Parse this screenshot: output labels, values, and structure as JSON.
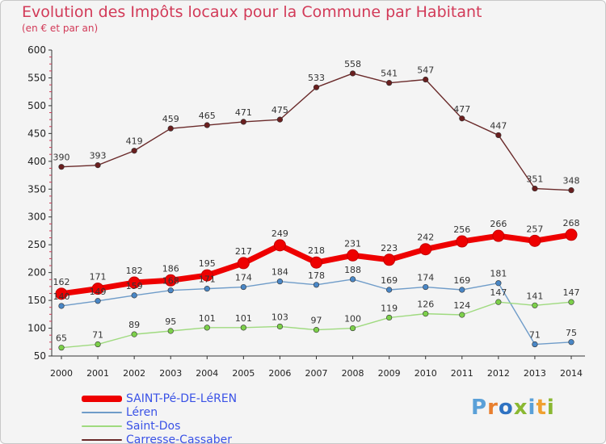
{
  "title": "Evolution des Impôts locaux pour la Commune par Habitant",
  "subtitle": "(en € et par an)",
  "logo": {
    "text": "Proxiti",
    "letter_colors": [
      "#5aa0d8",
      "#e87f2f",
      "#2e72c2",
      "#8ab832",
      "#5aa0d8",
      "#f0a030",
      "#8ab832"
    ]
  },
  "chart_data": {
    "type": "line",
    "x": [
      "2000",
      "2001",
      "2002",
      "2003",
      "2004",
      "2005",
      "2006",
      "2007",
      "2008",
      "2009",
      "2010",
      "2011",
      "2012",
      "2013",
      "2014"
    ],
    "ylim": [
      50,
      600
    ],
    "yticks": [
      50,
      100,
      150,
      200,
      250,
      300,
      350,
      400,
      450,
      500,
      550,
      600
    ],
    "grid": false,
    "legend_position": "bottom-left",
    "series": [
      {
        "name": "SAINT-Pé-DE-LéREN",
        "color": "#ee0000",
        "point_color": "#ee0000",
        "emphasis": true,
        "values": [
          162,
          171,
          182,
          186,
          195,
          217,
          249,
          218,
          231,
          223,
          242,
          256,
          266,
          257,
          268
        ],
        "labels": [
          "162",
          "171",
          "182",
          "186",
          "195",
          "217",
          "249",
          "218",
          "231",
          "223",
          "242",
          "256",
          "266",
          "257",
          "268"
        ]
      },
      {
        "name": "Léren",
        "color": "#6f9cc9",
        "point_color": "#4a87c6",
        "emphasis": false,
        "values": [
          140,
          149,
          159,
          168,
          171,
          174,
          184,
          178,
          188,
          169,
          174,
          169,
          181,
          71,
          75
        ],
        "labels": [
          "140",
          "149",
          "159",
          "168",
          "171",
          "174",
          "184",
          "178",
          "188",
          "169",
          "174",
          "169",
          "181",
          "71",
          "75"
        ]
      },
      {
        "name": "Saint-Dos",
        "color": "#9fda7f",
        "point_color": "#7cd04a",
        "emphasis": false,
        "values": [
          65,
          71,
          89,
          95,
          101,
          101,
          103,
          97,
          100,
          119,
          126,
          124,
          147,
          141,
          147
        ],
        "labels": [
          "65",
          "71",
          "89",
          "95",
          "101",
          "101",
          "103",
          "97",
          "100",
          "119",
          "126",
          "124",
          "147",
          "141",
          "147"
        ]
      },
      {
        "name": "Carresse-Cassaber",
        "color": "#6a2a2a",
        "point_color": "#6a1f1f",
        "emphasis": false,
        "values": [
          390,
          393,
          419,
          459,
          465,
          471,
          475,
          533,
          558,
          541,
          547,
          477,
          447,
          351,
          348
        ],
        "labels": [
          "390",
          "393",
          "419",
          "459",
          "465",
          "471",
          "475",
          "533",
          "558",
          "541",
          "547",
          "477",
          "447",
          "351",
          "348"
        ]
      }
    ]
  }
}
